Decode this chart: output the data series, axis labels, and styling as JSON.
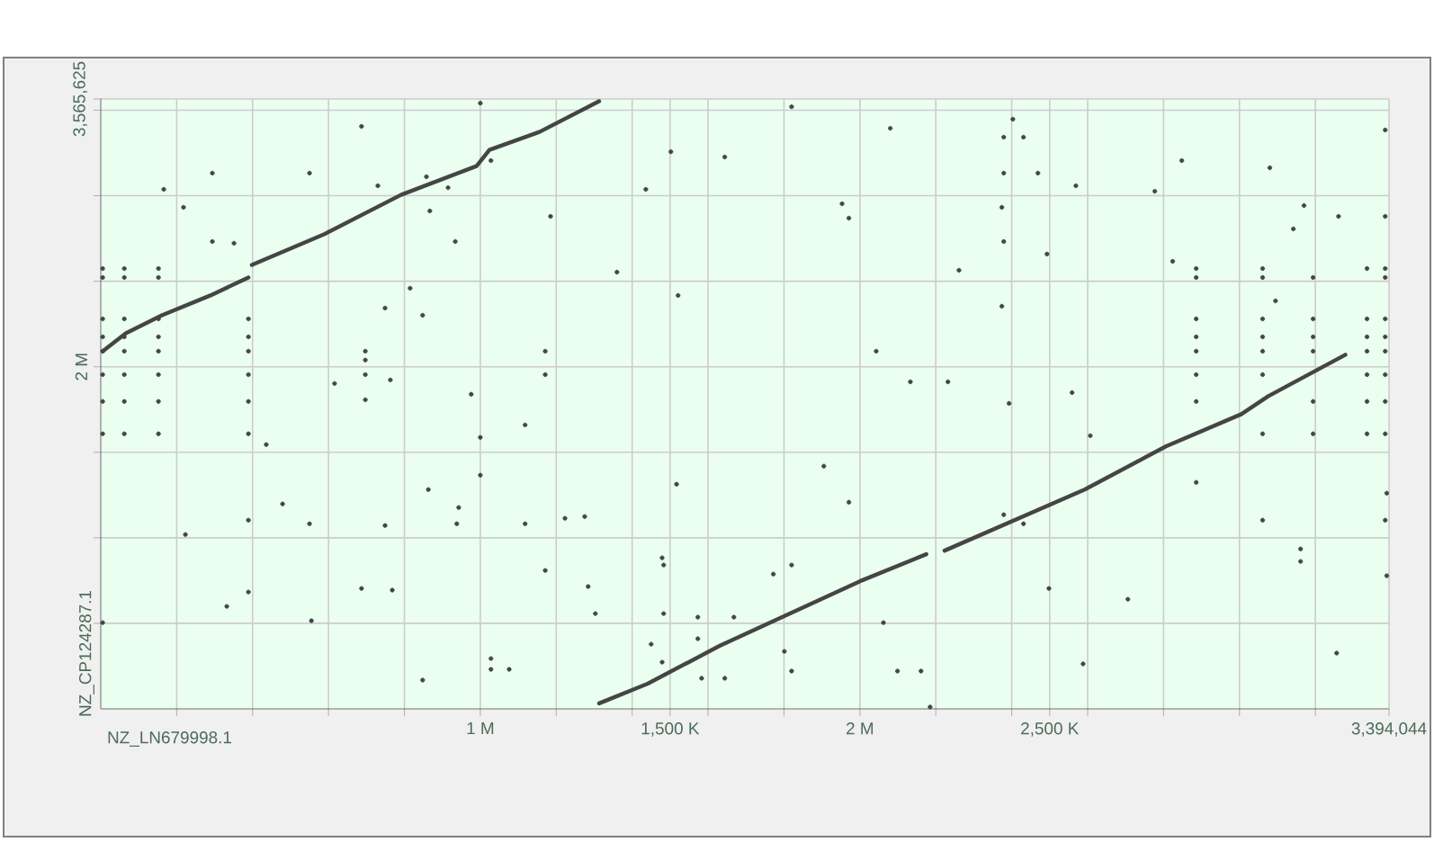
{
  "chart_data": {
    "type": "scatter",
    "xlabel": "NZ_LN679998.1",
    "ylabel": "NZ_CP124287.1",
    "xlim": [
      0,
      3394044
    ],
    "ylim": [
      0,
      3565625
    ],
    "xticks": [
      {
        "value": 200000,
        "label": null
      },
      {
        "value": 400000,
        "label": null
      },
      {
        "value": 600000,
        "label": null
      },
      {
        "value": 800000,
        "label": null
      },
      {
        "value": 1000000,
        "label": "1 M"
      },
      {
        "value": 1200000,
        "label": null
      },
      {
        "value": 1400000,
        "label": null
      },
      {
        "value": 1500000,
        "label": "1,500 K"
      },
      {
        "value": 1600000,
        "label": null
      },
      {
        "value": 1800000,
        "label": null
      },
      {
        "value": 2000000,
        "label": "2 M"
      },
      {
        "value": 2200000,
        "label": null
      },
      {
        "value": 2400000,
        "label": null
      },
      {
        "value": 2500000,
        "label": "2,500 K"
      },
      {
        "value": 2600000,
        "label": null
      },
      {
        "value": 2800000,
        "label": null
      },
      {
        "value": 3000000,
        "label": null
      },
      {
        "value": 3200000,
        "label": null
      },
      {
        "value": 3394044,
        "label": "3,394,044"
      }
    ],
    "yticks": [
      {
        "value": 500000,
        "label": null
      },
      {
        "value": 1000000,
        "label": null
      },
      {
        "value": 1500000,
        "label": null
      },
      {
        "value": 2000000,
        "label": "2 M"
      },
      {
        "value": 2500000,
        "label": null
      },
      {
        "value": 3000000,
        "label": null
      },
      {
        "value": 3500000,
        "label": null
      },
      {
        "value": 3565625,
        "label": "3,565,625"
      }
    ],
    "grid": true,
    "marker": "circle",
    "series": [
      {
        "type": "line",
        "marker": "none",
        "line_style": "solid",
        "color": "#454545",
        "x": [
          5000,
          66000,
          161000,
          289000,
          389000,
          null,
          398000,
          588000,
          791000,
          990000,
          1024000,
          1156000,
          1313000,
          null,
          1313000,
          1441000,
          1630000,
          2000000,
          2175000,
          null,
          2223000,
          2592000,
          2806000,
          3005000,
          3076000,
          3279000
        ],
        "values": [
          2091000,
          2196000,
          2301000,
          2417000,
          2522000,
          null,
          2595000,
          2774000,
          3005000,
          3173000,
          3268000,
          3373000,
          3552000,
          null,
          32000,
          147000,
          368000,
          746000,
          904000,
          null,
          925000,
          1282000,
          1534000,
          1723000,
          1828000,
          2070000
        ]
      },
      {
        "color": "#454545",
        "x": [
          166000,
          294000,
          218000,
          550000,
          687000,
          730000,
          858000,
          915000,
          867000,
          934000,
          1185000,
          1028000,
          1000000,
          1502000,
          1436000,
          1360000,
          1521000,
          294000,
          351000,
          815000,
          749000,
          848000,
          1171000,
          1171000,
          616000,
          763000,
          976000,
          1118000,
          1000000,
          1000000,
          863000,
          1517000,
          436000,
          5000,
          5000,
          5000,
          5000,
          5000,
          5000,
          5000,
          5000,
          62000,
          62000,
          62000,
          62000,
          62000,
          62000,
          62000,
          62000,
          152000,
          152000,
          152000,
          152000,
          152000,
          152000,
          152000,
          152000,
          389000,
          389000,
          389000,
          389000,
          389000,
          389000,
          697000,
          697000,
          697000,
          697000,
          1820000,
          2080000,
          1644000,
          2379000,
          2431000,
          2403000,
          2379000,
          2469000,
          2569000,
          2848000,
          3080000,
          2777000,
          1953000,
          1971000,
          2374000,
          2379000,
          2493000,
          2261000,
          2824000,
          3170000,
          3142000,
          3261000,
          2374000,
          2043000,
          2133000,
          2232000,
          2393000,
          2559000,
          2607000,
          1905000,
          3095000,
          2886000,
          2886000,
          2886000,
          2886000,
          2886000,
          2886000,
          2886000,
          3061000,
          3061000,
          3061000,
          3061000,
          3061000,
          3061000,
          3061000,
          3194000,
          3194000,
          3194000,
          3194000,
          3194000,
          3194000,
          3336000,
          3336000,
          3336000,
          3336000,
          3336000,
          3336000,
          3336000,
          3384000,
          3384000,
          3384000,
          3384000,
          3384000,
          3384000,
          3384000,
          3384000,
          3384000,
          3384000,
          479000,
          389000,
          550000,
          223000,
          749000,
          938000,
          943000,
          1118000,
          1223000,
          1275000,
          1171000,
          687000,
          768000,
          389000,
          332000,
          1284000,
          1303000,
          1479000,
          1483000,
          1483000,
          555000,
          5000,
          1028000,
          1028000,
          1076000,
          848000,
          1450000,
          1479000,
          1573000,
          1573000,
          1583000,
          1971000,
          2886000,
          3061000,
          3161000,
          3161000,
          3388000,
          3384000,
          3388000,
          3256000,
          2498000,
          2706000,
          2588000,
          1772000,
          1820000,
          1668000,
          1801000,
          1820000,
          1644000,
          2062000,
          2099000,
          2161000,
          2185000,
          2379000,
          2431000
        ],
        "values": [
          3037000,
          3132000,
          2932000,
          3132000,
          3405000,
          3058000,
          3111000,
          3047000,
          2911000,
          2732000,
          2879000,
          3205000,
          3541000,
          3257000,
          3037000,
          2553000,
          2417000,
          2732000,
          2722000,
          2459000,
          2343000,
          2301000,
          2091000,
          1954000,
          1902000,
          1923000,
          1839000,
          1660000,
          1587000,
          1366000,
          1282000,
          1313000,
          1545000,
          2574000,
          2522000,
          2280000,
          2175000,
          2091000,
          1954000,
          1797000,
          1608000,
          2574000,
          2522000,
          2280000,
          2175000,
          2091000,
          1954000,
          1797000,
          1608000,
          2574000,
          2522000,
          2280000,
          2175000,
          2091000,
          1954000,
          1797000,
          1608000,
          2280000,
          2175000,
          2091000,
          1954000,
          1797000,
          1608000,
          2091000,
          2039000,
          1954000,
          1807000,
          3520000,
          3394000,
          3226000,
          3342000,
          3342000,
          3447000,
          3132000,
          3132000,
          3058000,
          3205000,
          3163000,
          3026000,
          2953000,
          2869000,
          2932000,
          2732000,
          2659000,
          2564000,
          2616000,
          2942000,
          2806000,
          2879000,
          2354000,
          2091000,
          1912000,
          1912000,
          1786000,
          1849000,
          1597000,
          1419000,
          2385000,
          2574000,
          2522000,
          2280000,
          2175000,
          2091000,
          1954000,
          1797000,
          2574000,
          2522000,
          2280000,
          2175000,
          2091000,
          1954000,
          1608000,
          2522000,
          2280000,
          2175000,
          2091000,
          1797000,
          1608000,
          2574000,
          2280000,
          2175000,
          2091000,
          1954000,
          1797000,
          1608000,
          3384000,
          2879000,
          2574000,
          2522000,
          2280000,
          2175000,
          2091000,
          1954000,
          1797000,
          1608000,
          1198000,
          1103000,
          1082000,
          1019000,
          1072000,
          1082000,
          1177000,
          1082000,
          1114000,
          1124000,
          809000,
          704000,
          694000,
          683000,
          599000,
          715000,
          557000,
          883000,
          841000,
          557000,
          515000,
          504000,
          294000,
          231000,
          231000,
          168000,
          378000,
          273000,
          536000,
          410000,
          179000,
          1208000,
          1324000,
          1103000,
          935000,
          862000,
          1261000,
          1103000,
          778000,
          326000,
          704000,
          641000,
          263000,
          788000,
          841000,
          536000,
          336000,
          221000,
          179000,
          504000,
          221000,
          221000,
          11000,
          1135000,
          1082000
        ]
      }
    ]
  }
}
